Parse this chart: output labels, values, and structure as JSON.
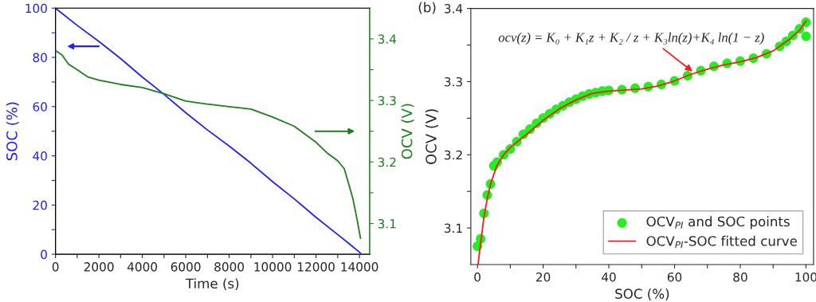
{
  "chart_data": [
    {
      "type": "line",
      "xlabel": "Time (s)",
      "ylabel": "SOC (%)",
      "y2label": "OCV (V)",
      "xlim": [
        0,
        14470
      ],
      "ylim": [
        0,
        100
      ],
      "y2lim": [
        3.05,
        3.45
      ],
      "xticks": [
        0,
        {
          "value": 1000,
          "label": null
        },
        2000,
        {
          "value": 3000,
          "label": null
        },
        4000,
        {
          "value": 5000,
          "label": null
        },
        6000,
        {
          "value": 7000,
          "label": null
        },
        8000,
        {
          "value": 9000,
          "label": null
        },
        10000,
        {
          "value": 11000,
          "label": null
        },
        12000,
        {
          "value": 13000,
          "label": null
        },
        14000
      ],
      "yticks": [
        0,
        {
          "value": 10,
          "label": null
        },
        20,
        {
          "value": 30,
          "label": null
        },
        40,
        {
          "value": 50,
          "label": null
        },
        60,
        {
          "value": 70,
          "label": null
        },
        80,
        {
          "value": 90,
          "label": null
        },
        100
      ],
      "y2ticks": [
        3.1,
        {
          "value": 3.15,
          "label": null
        },
        3.2,
        {
          "value": 3.25,
          "label": null
        },
        3.3,
        {
          "value": 3.35,
          "label": null
        },
        3.4
      ],
      "grid": false,
      "legend": false,
      "marker": "none",
      "line_style": "solid",
      "series": [
        {
          "color": "#2020ff",
          "x": [
            0,
            1000,
            2000,
            3000,
            4000,
            5000,
            6000,
            7000,
            8000,
            9000,
            10000,
            11000,
            12000,
            13000,
            13500,
            14050
          ],
          "values": [
            100,
            93,
            86.5,
            79.5,
            72,
            65,
            57.5,
            50.5,
            44,
            37,
            29.5,
            22.5,
            15,
            8,
            4.5,
            0.5
          ]
        },
        {
          "color": "#1a801a",
          "axis": "y2",
          "x": [
            0,
            300,
            600,
            1000,
            1500,
            2000,
            3000,
            4000,
            5000,
            6000,
            7000,
            8000,
            9000,
            10000,
            11000,
            12000,
            12500,
            13000,
            13300,
            13500,
            13700,
            13900,
            14050
          ],
          "values": [
            3.381,
            3.374,
            3.359,
            3.35,
            3.338,
            3.333,
            3.326,
            3.321,
            3.311,
            3.299,
            3.294,
            3.29,
            3.286,
            3.273,
            3.258,
            3.232,
            3.215,
            3.202,
            3.189,
            3.165,
            3.14,
            3.105,
            3.076
          ]
        }
      ]
    },
    {
      "type": "scatter",
      "xlabel": "SOC (%)",
      "ylabel": "OCV (V)",
      "xlim": [
        -2,
        102.3
      ],
      "ylim": [
        3.05,
        3.4
      ],
      "xticks": [
        0,
        {
          "value": 10,
          "label": null
        },
        20,
        {
          "value": 30,
          "label": null
        },
        40,
        {
          "value": 50,
          "label": null
        },
        60,
        {
          "value": 70,
          "label": null
        },
        80,
        {
          "value": 90,
          "label": null
        },
        100
      ],
      "yticks": [
        {
          "value": 3.1,
          "label": "3.1"
        },
        {
          "value": 3.15,
          "label": null
        },
        {
          "value": 3.2,
          "label": "3.2"
        },
        {
          "value": 3.25,
          "label": null
        },
        {
          "value": 3.3,
          "label": "3.3"
        },
        {
          "value": 3.35,
          "label": null
        },
        {
          "value": 3.4,
          "label": "3.4"
        }
      ],
      "grid": false,
      "legend": "bottom right",
      "annotations": [
        "(b)",
        {
          "text": "ocv(z) = K₀ + K₁z + K₂ / z + K₃ln(z)+K₄ ln(1 − z)",
          "x": 66,
          "y": 3.312
        }
      ],
      "series": [
        {
          "name": "OCV$_{PI}$ and SOC points",
          "type": "scatter",
          "marker": "circle",
          "color": "#22ee22",
          "x": [
            0,
            1,
            2,
            3,
            4,
            5,
            6,
            8,
            10,
            12,
            14,
            16,
            18,
            20,
            22,
            24,
            26,
            28,
            30,
            32,
            34,
            36,
            38,
            40,
            44,
            48,
            52,
            56,
            60,
            64,
            68,
            72,
            76,
            80,
            84,
            88,
            92,
            94,
            96,
            98,
            100,
            100
          ],
          "values": [
            3.075,
            3.085,
            3.12,
            3.145,
            3.16,
            3.185,
            3.19,
            3.2,
            3.208,
            3.218,
            3.228,
            3.235,
            3.243,
            3.25,
            3.256,
            3.262,
            3.267,
            3.272,
            3.276,
            3.28,
            3.283,
            3.285,
            3.287,
            3.288,
            3.289,
            3.291,
            3.293,
            3.296,
            3.301,
            3.308,
            3.315,
            3.321,
            3.325,
            3.328,
            3.332,
            3.338,
            3.348,
            3.355,
            3.363,
            3.372,
            3.381,
            3.362
          ]
        },
        {
          "name": "OCV$_{PI}$-SOC fitted curve",
          "type": "line",
          "marker": "none",
          "line_style": "solid",
          "color": "#ff1a1a",
          "x": [
            0.2,
            1,
            2,
            3,
            4,
            6,
            8,
            10,
            15,
            20,
            25,
            30,
            35,
            40,
            50,
            55,
            60,
            65,
            70,
            75,
            80,
            85,
            90,
            95,
            98,
            100
          ],
          "values": [
            3.05,
            3.08,
            3.115,
            3.14,
            3.16,
            3.186,
            3.2,
            3.21,
            3.228,
            3.247,
            3.263,
            3.275,
            3.284,
            3.287,
            3.29,
            3.294,
            3.301,
            3.31,
            3.317,
            3.323,
            3.327,
            3.333,
            3.342,
            3.358,
            3.37,
            3.383
          ]
        }
      ]
    }
  ]
}
